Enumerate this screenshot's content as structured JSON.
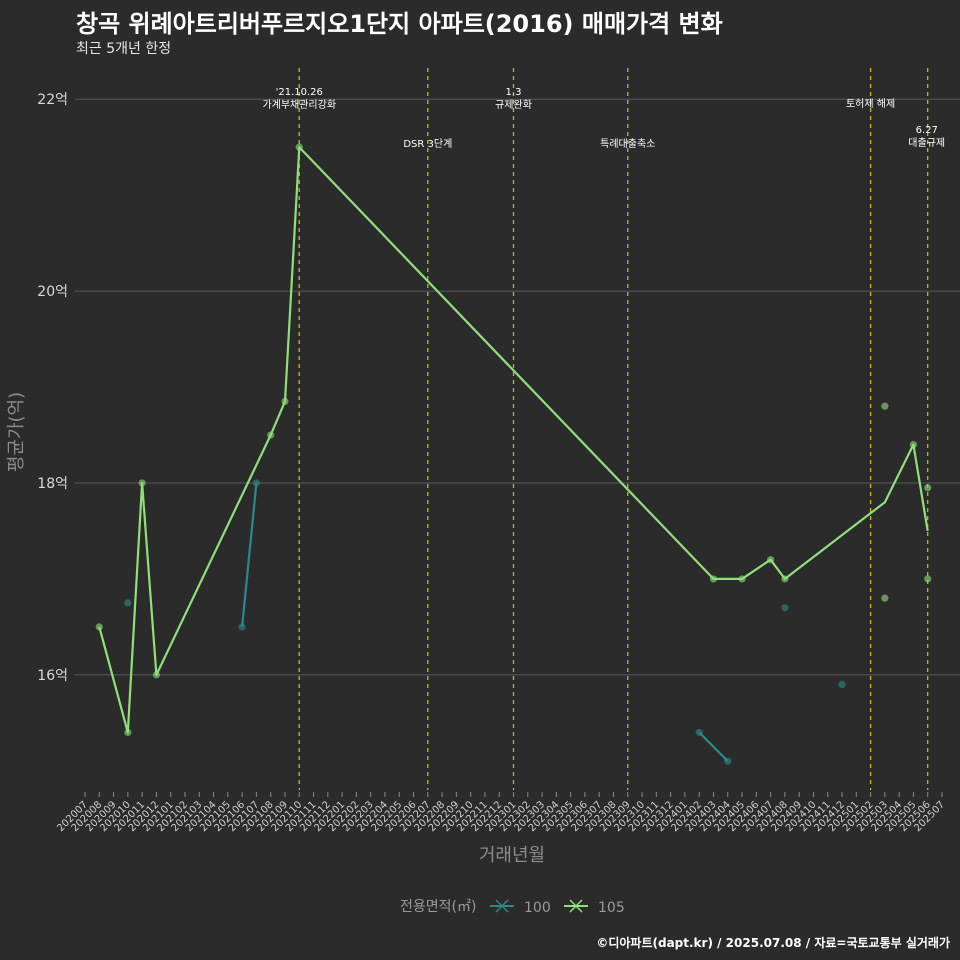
{
  "header": {
    "title": "창곡 위례아트리버푸르지오1단지 아파트(2016) 매매가격 변화",
    "subtitle": "최근 5개년 한정"
  },
  "caption": "©디아파트(dapt.kr) / 2025.07.08 / 자료=국토교통부 실거래가",
  "colors": {
    "background": "#2b2b2b",
    "grid": "#5a5a5a",
    "vline": "#c8c800",
    "series_100": "#2a8a8a",
    "series_105": "#8fe07a"
  },
  "chart_data": {
    "type": "line",
    "xlabel": "거래년월",
    "ylabel": "평균가(억)",
    "yunit": "억",
    "ylim": [
      14.8,
      22.2
    ],
    "yticks": [
      16,
      18,
      20,
      22
    ],
    "categories": [
      "202007",
      "202008",
      "202009",
      "202010",
      "202011",
      "202012",
      "202101",
      "202102",
      "202103",
      "202104",
      "202105",
      "202106",
      "202107",
      "202108",
      "202109",
      "202110",
      "202111",
      "202112",
      "202201",
      "202202",
      "202203",
      "202204",
      "202205",
      "202206",
      "202207",
      "202208",
      "202209",
      "202210",
      "202211",
      "202212",
      "202301",
      "202302",
      "202303",
      "202304",
      "202305",
      "202306",
      "202307",
      "202308",
      "202309",
      "202310",
      "202311",
      "202312",
      "202401",
      "202402",
      "202403",
      "202404",
      "202405",
      "202406",
      "202407",
      "202408",
      "202409",
      "202410",
      "202411",
      "202412",
      "202501",
      "202502",
      "202503",
      "202504",
      "202505",
      "202506",
      "202507"
    ],
    "legend": {
      "title": "전용면적(㎡)",
      "position": "bottom"
    },
    "series": [
      {
        "name": "100",
        "lines": [
          [
            {
              "x": "202106",
              "y": 16.5
            },
            {
              "x": "202107",
              "y": 18.0
            }
          ],
          [
            {
              "x": "202402",
              "y": 15.4
            },
            {
              "x": "202404",
              "y": 15.1
            }
          ]
        ],
        "points": [
          {
            "x": "202010",
            "y": 16.75
          },
          {
            "x": "202106",
            "y": 16.5
          },
          {
            "x": "202107",
            "y": 18.0
          },
          {
            "x": "202402",
            "y": 15.4
          },
          {
            "x": "202404",
            "y": 15.1
          },
          {
            "x": "202408",
            "y": 16.7
          },
          {
            "x": "202412",
            "y": 15.9
          }
        ]
      },
      {
        "name": "105",
        "lines": [
          [
            {
              "x": "202008",
              "y": 16.5
            },
            {
              "x": "202010",
              "y": 15.4
            },
            {
              "x": "202011",
              "y": 18.0
            },
            {
              "x": "202012",
              "y": 16.0
            },
            {
              "x": "202108",
              "y": 18.5
            },
            {
              "x": "202109",
              "y": 18.85
            },
            {
              "x": "202110",
              "y": 21.5
            },
            {
              "x": "202403",
              "y": 17.0
            },
            {
              "x": "202405",
              "y": 17.0
            },
            {
              "x": "202407",
              "y": 17.2
            },
            {
              "x": "202408",
              "y": 17.0
            },
            {
              "x": "202503",
              "y": 17.8
            },
            {
              "x": "202505",
              "y": 18.4
            },
            {
              "x": "202506",
              "y": 17.5
            }
          ]
        ],
        "points": [
          {
            "x": "202008",
            "y": 16.5
          },
          {
            "x": "202010",
            "y": 15.4
          },
          {
            "x": "202011",
            "y": 18.0
          },
          {
            "x": "202012",
            "y": 16.0
          },
          {
            "x": "202108",
            "y": 18.5
          },
          {
            "x": "202109",
            "y": 18.85
          },
          {
            "x": "202110",
            "y": 21.5
          },
          {
            "x": "202403",
            "y": 17.0
          },
          {
            "x": "202405",
            "y": 17.0
          },
          {
            "x": "202407",
            "y": 17.2
          },
          {
            "x": "202408",
            "y": 17.0
          },
          {
            "x": "202503",
            "y": 18.8
          },
          {
            "x": "202503",
            "y": 16.8
          },
          {
            "x": "202505",
            "y": 18.4
          },
          {
            "x": "202506",
            "y": 17.95
          },
          {
            "x": "202506",
            "y": 17.0
          }
        ]
      }
    ],
    "events": [
      {
        "x": "202110",
        "lines": [
          "'21.10.26",
          "가계부채관리강화"
        ],
        "level": 0
      },
      {
        "x": "202207",
        "lines": [
          "DSR 3단계"
        ],
        "level": 2
      },
      {
        "x": "202301",
        "lines": [
          "1.3",
          "규제완화"
        ],
        "level": 0
      },
      {
        "x": "202309",
        "lines": [
          "특례대출축소"
        ],
        "level": 2
      },
      {
        "x": "202502",
        "lines": [
          "토허제 해제"
        ],
        "level": 1
      },
      {
        "x": "202506",
        "lines": [
          "6.27",
          "대출규제"
        ],
        "level": 3
      }
    ]
  }
}
